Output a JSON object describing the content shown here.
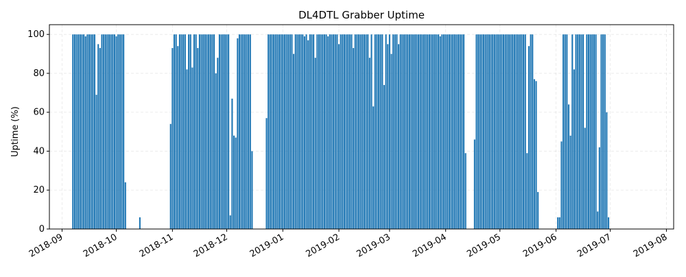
{
  "chart_data": {
    "type": "bar",
    "title": "DL4DTL Grabber Uptime",
    "xlabel": "",
    "ylabel": "Uptime (%)",
    "ylim": [
      0,
      105
    ],
    "xlim": [
      "2018-08-25",
      "2019-08-05"
    ],
    "grid": true,
    "bar_color": "#1f77b4",
    "y_ticks": [
      0,
      20,
      40,
      60,
      80,
      100
    ],
    "x_ticks": [
      "2018-09-01",
      "2018-10-01",
      "2018-11-01",
      "2018-12-01",
      "2019-01-01",
      "2019-02-01",
      "2019-03-01",
      "2019-04-01",
      "2019-05-01",
      "2019-06-01",
      "2019-07-01",
      "2019-08-01"
    ],
    "x_tick_labels": [
      "2018-09",
      "2018-10",
      "2018-11",
      "2018-12",
      "2019-01",
      "2019-02",
      "2019-03",
      "2019-04",
      "2019-05",
      "2019-06",
      "2019-07",
      "2019-08"
    ],
    "start_date": "2018-09-07",
    "values": [
      100,
      100,
      100,
      100,
      100,
      100,
      100,
      99,
      100,
      100,
      100,
      100,
      100,
      69,
      95,
      93,
      100,
      100,
      100,
      100,
      100,
      100,
      100,
      100,
      99,
      100,
      100,
      100,
      100,
      24,
      null,
      null,
      null,
      null,
      null,
      null,
      null,
      6,
      null,
      null,
      null,
      null,
      null,
      null,
      null,
      null,
      null,
      null,
      null,
      null,
      null,
      null,
      null,
      null,
      54,
      93,
      100,
      100,
      94,
      100,
      100,
      100,
      100,
      82,
      100,
      100,
      83,
      100,
      100,
      93,
      100,
      100,
      100,
      100,
      100,
      100,
      100,
      100,
      100,
      80,
      88,
      100,
      100,
      100,
      100,
      100,
      100,
      7,
      67,
      48,
      47,
      98,
      100,
      100,
      100,
      100,
      100,
      100,
      100,
      40,
      null,
      null,
      null,
      null,
      null,
      null,
      null,
      57,
      100,
      100,
      100,
      100,
      100,
      100,
      100,
      100,
      100,
      100,
      100,
      100,
      100,
      100,
      90,
      100,
      100,
      100,
      100,
      100,
      99,
      100,
      97,
      100,
      100,
      100,
      88,
      100,
      100,
      100,
      100,
      100,
      100,
      99,
      100,
      100,
      100,
      100,
      100,
      95,
      100,
      100,
      100,
      100,
      100,
      100,
      100,
      93,
      100,
      100,
      100,
      100,
      100,
      100,
      100,
      100,
      88,
      100,
      63,
      100,
      100,
      100,
      100,
      100,
      74,
      100,
      95,
      100,
      90,
      100,
      100,
      100,
      95,
      100,
      100,
      100,
      100,
      100,
      100,
      100,
      100,
      100,
      100,
      100,
      100,
      100,
      100,
      100,
      100,
      100,
      100,
      100,
      100,
      100,
      100,
      99,
      100,
      100,
      100,
      100,
      100,
      100,
      100,
      100,
      100,
      100,
      100,
      100,
      100,
      39,
      null,
      null,
      null,
      null,
      46,
      100,
      100,
      100,
      100,
      100,
      100,
      100,
      100,
      100,
      100,
      100,
      100,
      100,
      100,
      100,
      100,
      100,
      100,
      100,
      100,
      100,
      100,
      100,
      100,
      100,
      100,
      100,
      100,
      39,
      94,
      100,
      100,
      77,
      76,
      19,
      null,
      null,
      null,
      null,
      null,
      null,
      null,
      null,
      null,
      null,
      6,
      6,
      45,
      100,
      100,
      100,
      64,
      48,
      100,
      82,
      100,
      100,
      100,
      100,
      100,
      52,
      100,
      100,
      100,
      100,
      100,
      100,
      9,
      42,
      100,
      100,
      100,
      60,
      6
    ]
  }
}
